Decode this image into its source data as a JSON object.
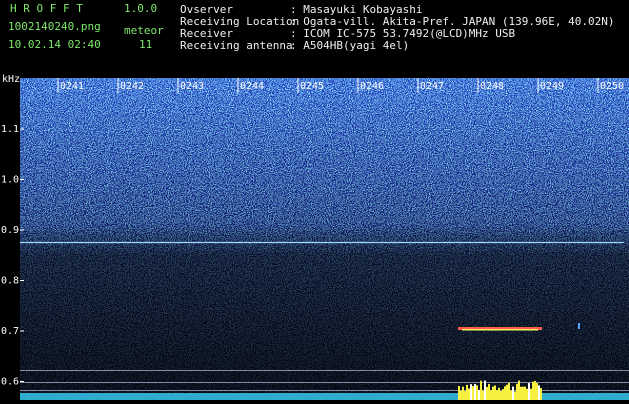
{
  "header": {
    "app_name": "H R O F F T",
    "version": "1.0.0",
    "file_name": "1002140240.png",
    "mode": "meteor",
    "timestamp": "10.02.14 02:40",
    "count": "11",
    "info": [
      {
        "label": "Ovserver",
        "value": ": Masayuki Kobayashi"
      },
      {
        "label": "Receiving Location",
        "value": ": Ogata-vill. Akita-Pref. JAPAN (139.96E, 40.02N)"
      },
      {
        "label": "Receiver",
        "value": ": ICOM IC-575 53.7492(@LCD)MHz USB"
      },
      {
        "label": "Receiving antenna",
        "value": ": A504HB(yagi 4el)"
      }
    ]
  },
  "spectrogram": {
    "freq_unit": "kHz",
    "freq_labels": [
      "1.1",
      "1.0",
      "0.9",
      "0.8",
      "0.7",
      "0.6"
    ],
    "time_labels": [
      "0241",
      "0242",
      "0243",
      "0244",
      "0245",
      "0246",
      "0247",
      "0248",
      "0249",
      "0250"
    ]
  }
}
